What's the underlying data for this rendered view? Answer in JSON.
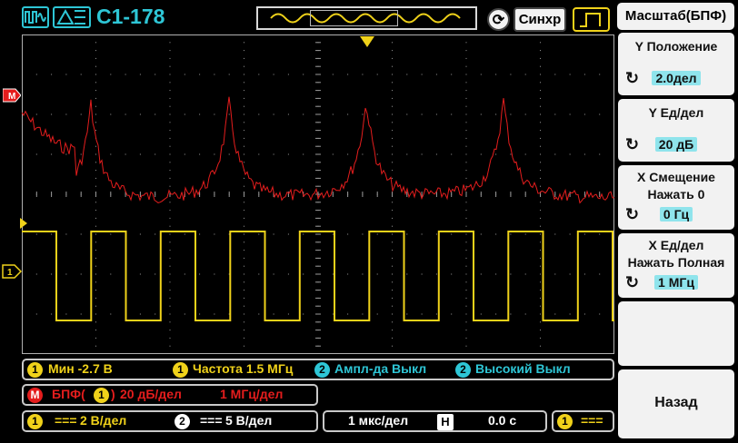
{
  "header": {
    "model": "С1-178",
    "sync_label": "Синхр"
  },
  "side_menu": {
    "title": "Масштаб(БПФ)",
    "items": [
      {
        "label_lines": [
          "Y Положение"
        ],
        "value": "2.0дел"
      },
      {
        "label_lines": [
          "Y Ед/дел"
        ],
        "value": "20 дБ"
      },
      {
        "label_lines": [
          "X Смещение",
          "Нажать 0"
        ],
        "value": "0 Гц"
      },
      {
        "label_lines": [
          "X Ед/дел",
          "Нажать Полная"
        ],
        "value": "1 МГц"
      }
    ],
    "back_label": "Назад"
  },
  "measurements": {
    "min": {
      "channel": "1",
      "text": "Мин -2.7 В"
    },
    "freq": {
      "channel": "1",
      "text": "Частота 1.5 МГц"
    },
    "amp": {
      "channel": "2",
      "text": "Ампл-да Выкл"
    },
    "high": {
      "channel": "2",
      "text": "Высокий Выкл"
    }
  },
  "fft": {
    "math_badge": "M",
    "label_prefix": "БПФ(",
    "channel": "1",
    "label_suffix": ")",
    "db_div": "20 дБ/дел",
    "freq_div": "1 МГц/дел"
  },
  "channels": {
    "ch1": {
      "num": "1",
      "coupling": "===",
      "scale": "2 В/дел"
    },
    "ch2": {
      "num": "2",
      "coupling": "===",
      "scale": "5 В/дел"
    }
  },
  "timebase": {
    "scale": "1 мкс/дел",
    "h_label": "H",
    "offset": "0.0 с"
  },
  "trigger": {
    "channel": "1",
    "coupling": "==="
  },
  "marker_labels": {
    "math": "M",
    "ch1": "1"
  },
  "colors": {
    "ch1": "#f0d21a",
    "ch2": "#2ec6d6",
    "math": "#e41d1d",
    "grid": "#9a9a9a"
  }
}
